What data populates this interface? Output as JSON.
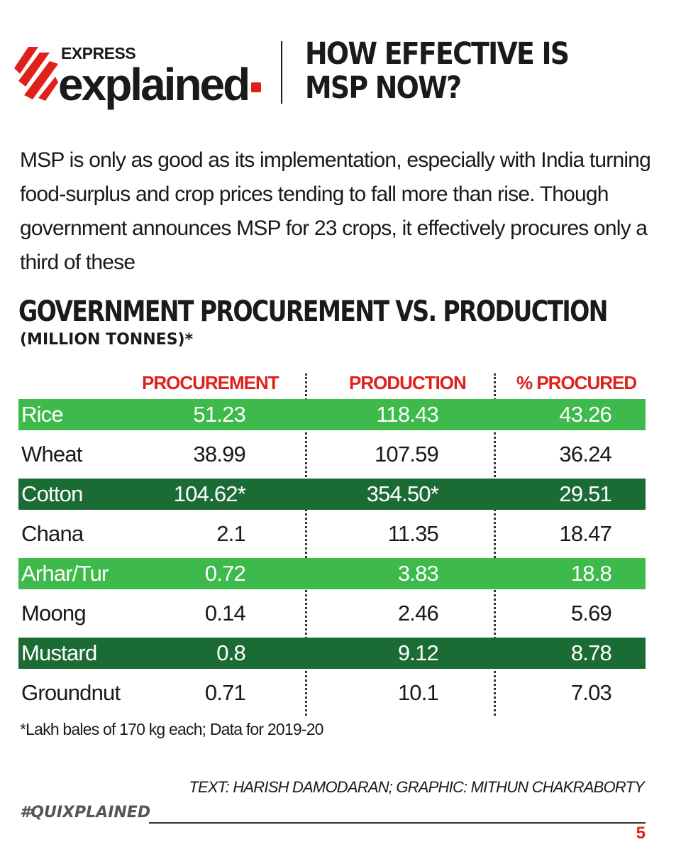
{
  "logo": {
    "express": "EXPRESS",
    "explained": "explained",
    "brand_color": "#e0201b"
  },
  "headline": "HOW EFFECTIVE IS MSP NOW?",
  "intro": "MSP is only as good as its implementation, especially with India turning food-surplus and crop prices tending to fall more than rise. Though government announces MSP for 23 crops, it effectively procures only a third of these",
  "chart_data": {
    "type": "table",
    "title": "GOVERNMENT PROCUREMENT VS. PRODUCTION",
    "subtitle": "(MILLION TONNES)*",
    "columns": [
      "PROCUREMENT",
      "PRODUCTION",
      "% PROCURED"
    ],
    "header_color": "#e0201b",
    "rows": [
      {
        "crop": "Rice",
        "procurement": "51.23",
        "production": "118.43",
        "pct": "43.26",
        "highlight": "light"
      },
      {
        "crop": "Wheat",
        "procurement": "38.99",
        "production": "107.59",
        "pct": "36.24",
        "highlight": "none"
      },
      {
        "crop": "Cotton",
        "procurement": "104.62*",
        "production": "354.50*",
        "pct": "29.51",
        "highlight": "dark"
      },
      {
        "crop": "Chana",
        "procurement": "2.1",
        "production": "11.35",
        "pct": "18.47",
        "highlight": "none"
      },
      {
        "crop": "Arhar/Tur",
        "procurement": "0.72",
        "production": "3.83",
        "pct": "18.8",
        "highlight": "light"
      },
      {
        "crop": "Moong",
        "procurement": "0.14",
        "production": "2.46",
        "pct": "5.69",
        "highlight": "none"
      },
      {
        "crop": "Mustard",
        "procurement": "0.8",
        "production": "9.12",
        "pct": "8.78",
        "highlight": "dark"
      },
      {
        "crop": "Groundnut",
        "procurement": "0.71",
        "production": "10.1",
        "pct": "7.03",
        "highlight": "none"
      }
    ],
    "highlight_colors": {
      "light": "#3dba4b",
      "dark": "#1b6b35"
    }
  },
  "footnote": "*Lakh bales of 170 kg each; Data for 2019-20",
  "credit": "TEXT: HARISH DAMODARAN; GRAPHIC: MITHUN CHAKRABORTY",
  "hashtag": "#QUIXPLAINED",
  "page_number": "5"
}
